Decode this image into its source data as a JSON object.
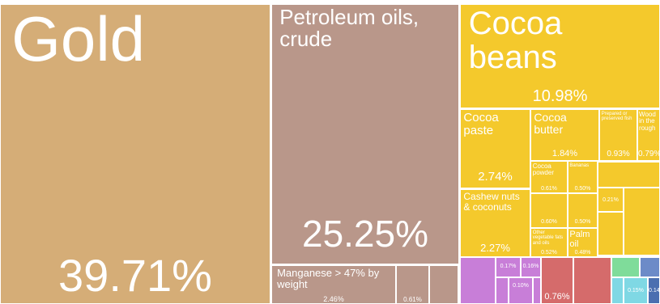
{
  "chart_data": {
    "type": "treemap",
    "categories": [
      "Gold",
      "Petroleum oils, crude",
      "Manganese > 47% by weight",
      null,
      "Cocoa beans",
      "Cocoa paste",
      "Cocoa butter",
      "Prepared or preserved fish",
      "Wood in the rough",
      "Cocoa powder",
      "Bananas",
      "Cashew nuts & coconuts",
      null,
      "Other vegetable fats and oils",
      null,
      "Palm oil",
      null,
      null,
      null,
      null,
      null,
      null,
      null
    ],
    "values": [
      39.71,
      25.25,
      2.46,
      0.61,
      10.98,
      2.74,
      1.84,
      0.93,
      0.79,
      0.61,
      0.5,
      2.27,
      0.6,
      0.52,
      0.5,
      0.48,
      0.21,
      0.17,
      0.16,
      0.1,
      0.76,
      0.15,
      0.14
    ],
    "value_labels": [
      "39.71%",
      "25.25%",
      "2.46%",
      "0.61%",
      "10.98%",
      "2.74%",
      "1.84%",
      "0.93%",
      "0.79%",
      "0.61%",
      "0.50%",
      "2.27%",
      "0.60%",
      "0.52%",
      "0.50%",
      "0.48%",
      "0.21%",
      "0.17%",
      "0.16%",
      "0.10%",
      "0.76%",
      "0.15%",
      "0.14%"
    ],
    "colors": [
      "#d5ad77",
      "#b9978a",
      "#b9978a",
      "#b9978a",
      "#f4c92c",
      "#f4c92c",
      "#f4c92c",
      "#f4c92c",
      "#f4c92c",
      "#f4c92c",
      "#f4c92c",
      "#f4c92c",
      "#f4c92c",
      "#f4c92c",
      "#f4c92c",
      "#f4c92c",
      "#f4c92c",
      "#c87ed8",
      "#c87ed8",
      "#c87ed8",
      "#d56b6b",
      "#7fd8e4",
      "#4b6fb0"
    ]
  }
}
